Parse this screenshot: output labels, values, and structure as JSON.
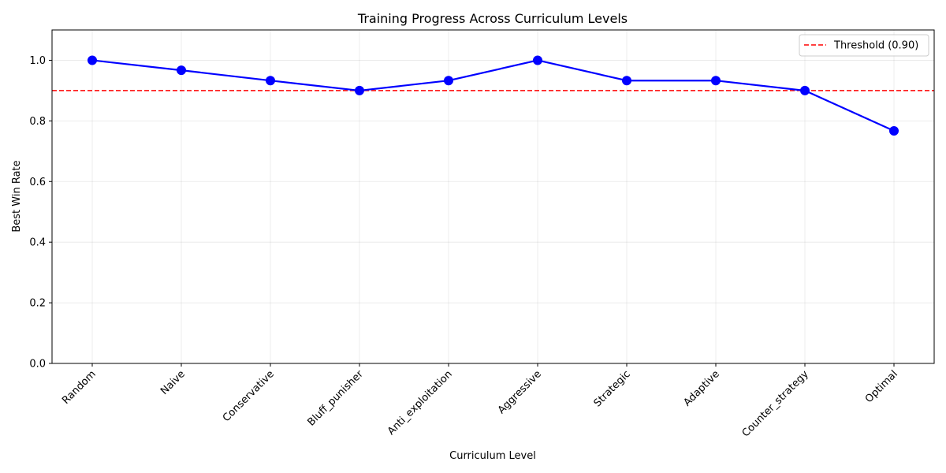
{
  "chart_data": {
    "type": "line",
    "title": "Training Progress Across Curriculum Levels",
    "xlabel": "Curriculum Level",
    "ylabel": "Best Win Rate",
    "categories": [
      "Random",
      "Naive",
      "Conservative",
      "Bluff_punisher",
      "Anti_exploitation",
      "Aggressive",
      "Strategic",
      "Adaptive",
      "Counter_strategy",
      "Optimal"
    ],
    "series": [
      {
        "name": "",
        "values": [
          1.0,
          0.967,
          0.933,
          0.9,
          0.933,
          1.0,
          0.933,
          0.933,
          0.9,
          0.767
        ],
        "color": "#0000ff",
        "marker": "circle"
      }
    ],
    "reference_lines": [
      {
        "label": "Threshold (0.90)",
        "y": 0.9,
        "color": "#ff0000",
        "style": "dashed"
      }
    ],
    "ylim": [
      0.0,
      1.1
    ],
    "yticks": [
      0.0,
      0.2,
      0.4,
      0.6,
      0.8,
      1.0
    ],
    "ytick_labels": [
      "0.0",
      "0.2",
      "0.4",
      "0.6",
      "0.8",
      "1.0"
    ],
    "grid": true,
    "legend_position": "top-right"
  }
}
